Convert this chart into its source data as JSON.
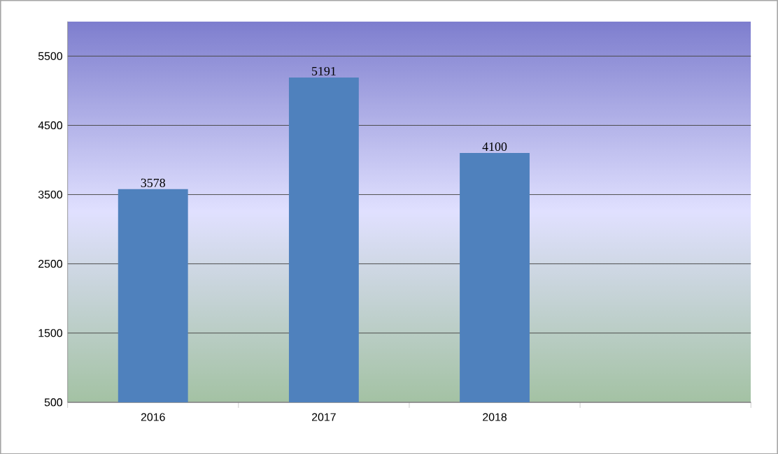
{
  "chart_data": {
    "type": "bar",
    "categories": [
      "2016",
      "2017",
      "2018",
      null
    ],
    "values": [
      3578,
      5191,
      4100,
      null
    ],
    "color": "#4f81bd",
    "ylim": [
      500,
      6000
    ],
    "yticks": [
      500,
      1500,
      2500,
      3500,
      4500,
      5500
    ],
    "grid": "y",
    "data_labels": true
  }
}
